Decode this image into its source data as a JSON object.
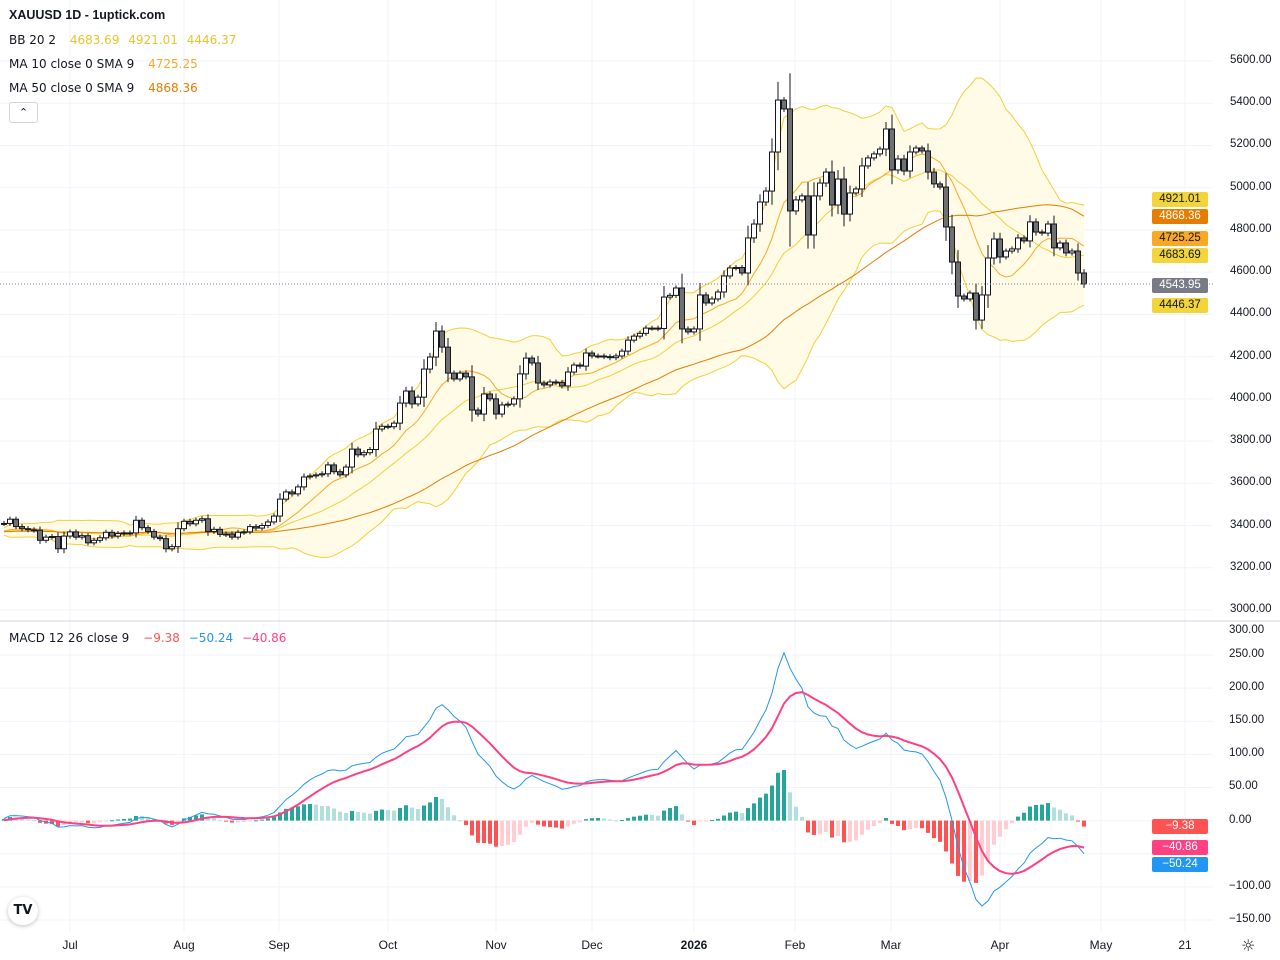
{
  "header": {
    "title": "XAUUSD 1D - 1uptick.com"
  },
  "legend": {
    "bb": {
      "name": "BB 20 2",
      "basis": "4683.69",
      "upper": "4921.01",
      "lower": "4446.37"
    },
    "ma10": {
      "name": "MA 10 close 0 SMA 9",
      "value": "4725.25"
    },
    "ma50": {
      "name": "MA 50 close 0 SMA 9",
      "value": "4868.36"
    },
    "macd": {
      "name": "MACD 12 26 close 9",
      "hist": "−9.38",
      "macd": "−50.24",
      "signal": "−40.86"
    }
  },
  "colors": {
    "bb": "#f2cf3a",
    "bb_fill": "#fffbe6",
    "ma10": "#f9a825",
    "ma50": "#e67c00",
    "candle_up": "#ffffff",
    "candle_down": "#707070",
    "candle_border": "#131722",
    "macd": "#2196f3",
    "signal": "#ff4081",
    "hist_up_strong": "#26a69a",
    "hist_up_weak": "#b2dfdb",
    "hist_down_strong": "#ff5252",
    "hist_down_weak": "#ffcdd2",
    "last_price": "#787b86"
  },
  "price_axis": {
    "ticks": [
      "5600.00",
      "5400.00",
      "5200.00",
      "5000.00",
      "4800.00",
      "4600.00",
      "4400.00",
      "4200.00",
      "4000.00",
      "3800.00",
      "3600.00",
      "3400.00",
      "3200.00",
      "3000.00"
    ]
  },
  "macd_axis": {
    "ticks": [
      "300.00",
      "250.00",
      "200.00",
      "150.00",
      "100.00",
      "50.00",
      "0.00",
      "−100.00",
      "−150.00"
    ]
  },
  "price_tags": [
    {
      "label": "4921.01",
      "kind": "bb"
    },
    {
      "label": "4868.36",
      "kind": "ma50"
    },
    {
      "label": "4725.25",
      "kind": "ma10"
    },
    {
      "label": "4683.69",
      "kind": "bb"
    },
    {
      "label": "4543.95",
      "kind": "last"
    },
    {
      "label": "4446.37",
      "kind": "bb"
    }
  ],
  "macd_tags": [
    {
      "label": "−9.38",
      "kind": "hist"
    },
    {
      "label": "−40.86",
      "kind": "signal"
    },
    {
      "label": "−50.24",
      "kind": "macd"
    }
  ],
  "time_axis": {
    "labels": [
      "Jul",
      "Aug",
      "Sep",
      "Oct",
      "Nov",
      "Dec",
      "2026",
      "Feb",
      "Mar",
      "Apr",
      "May",
      "21"
    ]
  },
  "logo_text": "TV",
  "chart_data": [
    {
      "type": "candlestick",
      "symbol": "XAUUSD",
      "interval": "1D",
      "ylim": [
        3000,
        5600
      ],
      "grid": true,
      "last_price": 4543.95,
      "indicators": [
        "BB 20 2",
        "MA 10",
        "MA 50"
      ],
      "close": [
        3410,
        3430,
        3395,
        3385,
        3380,
        3378,
        3330,
        3345,
        3348,
        3290,
        3350,
        3370,
        3345,
        3352,
        3318,
        3330,
        3342,
        3368,
        3350,
        3362,
        3365,
        3365,
        3425,
        3390,
        3372,
        3345,
        3338,
        3290,
        3300,
        3385,
        3420,
        3408,
        3425,
        3432,
        3372,
        3382,
        3358,
        3360,
        3345,
        3368,
        3370,
        3395,
        3388,
        3400,
        3417,
        3445,
        3525,
        3559,
        3550,
        3583,
        3630,
        3635,
        3640,
        3645,
        3687,
        3655,
        3640,
        3677,
        3762,
        3735,
        3745,
        3760,
        3857,
        3870,
        3868,
        3885,
        3980,
        4037,
        3976,
        4008,
        4141,
        4198,
        4321,
        4245,
        4122,
        4094,
        4122,
        4104,
        3947,
        3928,
        4023,
        4000,
        3928,
        3971,
        3975,
        4000,
        4118,
        4193,
        4170,
        4075,
        4066,
        4080,
        4078,
        4061,
        4127,
        4160,
        4155,
        4217,
        4203,
        4203,
        4200,
        4195,
        4203,
        4226,
        4278,
        4297,
        4310,
        4335,
        4335,
        4333,
        4482,
        4490,
        4525,
        4331,
        4317,
        4331,
        4492,
        4454,
        4473,
        4506,
        4582,
        4620,
        4622,
        4596,
        4762,
        4828,
        4932,
        4984,
        5169,
        5415,
        5373,
        4890,
        4942,
        4961,
        4776,
        4961,
        5022,
        5074,
        4918,
        5041,
        4875,
        4975,
        4994,
        5103,
        5141,
        5160,
        5183,
        5278,
        5084,
        5136,
        5079,
        5169,
        5188,
        5174,
        5074,
        5018,
        5003,
        4814,
        4648,
        4487,
        4473,
        4501,
        4373,
        4492,
        4667,
        4757,
        4672,
        4700,
        4710,
        4762,
        4748,
        4838,
        4790,
        4785,
        4828,
        4715,
        4738,
        4691,
        4700,
        4596,
        4544
      ]
    },
    {
      "type": "macd",
      "params": "12 26 close 9",
      "ylim": [
        -170,
        300
      ],
      "last": {
        "histogram": -9.38,
        "macd": -50.24,
        "signal": -40.86
      }
    }
  ]
}
